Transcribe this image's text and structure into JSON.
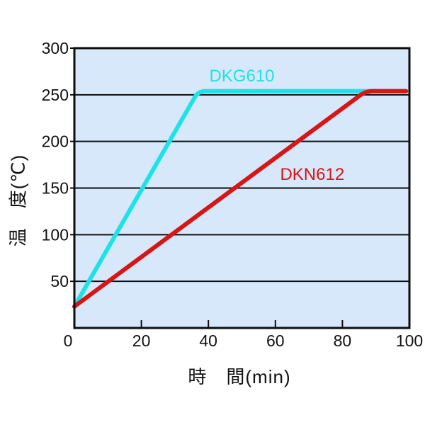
{
  "chart_data": {
    "type": "line",
    "title": "",
    "xlabel": "時　間(min)",
    "ylabel": "温　度(℃)",
    "xlim": [
      0,
      100
    ],
    "ylim": [
      0,
      300
    ],
    "x_ticks": [
      0,
      20,
      40,
      60,
      80,
      100
    ],
    "y_ticks": [
      50,
      100,
      150,
      200,
      250,
      300
    ],
    "grid": "horizontal-only",
    "legend_position": "inline-annotations",
    "colors": {
      "plot_background": "#d7e8fa",
      "axis_frame": "#0d0d0d",
      "gridline": "#0d0d0d",
      "tick_text": "#111111"
    },
    "series": [
      {
        "name": "DKG610",
        "color": "#1fe2e8",
        "points": [
          [
            0,
            23
          ],
          [
            37,
            254
          ],
          [
            95,
            254
          ]
        ],
        "label_at": [
          50,
          270
        ]
      },
      {
        "name": "DKN612",
        "color": "#d91414",
        "points": [
          [
            0,
            23
          ],
          [
            87,
            254
          ],
          [
            99,
            254
          ]
        ],
        "label_at": [
          71,
          164
        ]
      }
    ]
  }
}
